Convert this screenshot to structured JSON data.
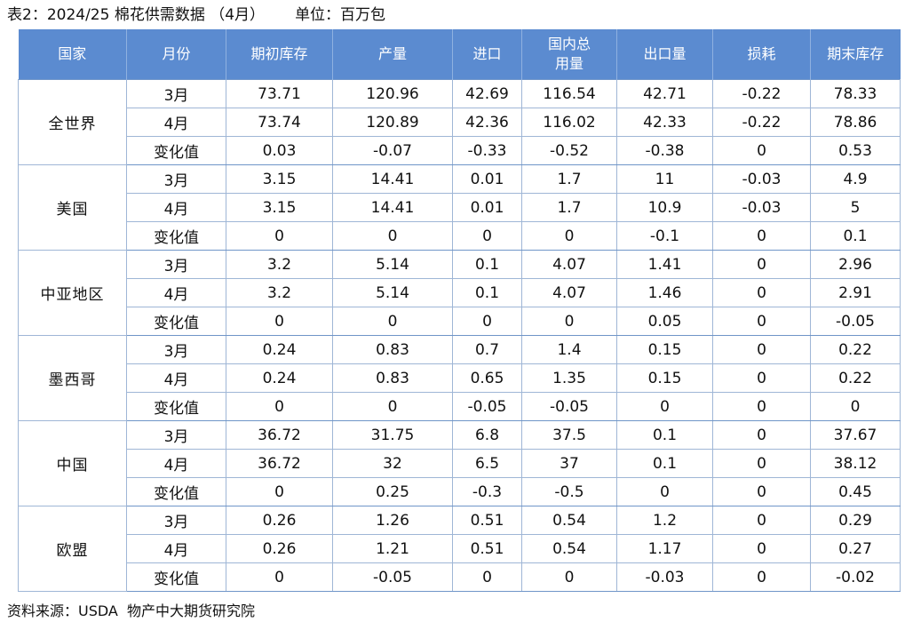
{
  "title": "表2：2024/25 棉花供需数据 （4月）",
  "unit": "单位：百万包",
  "headers": [
    "国家",
    "月份",
    "期初库存",
    "产量",
    "进口",
    "国内总用量",
    "出口量",
    "损耗",
    "期末库存"
  ],
  "groups": [
    {
      "country": "全世界",
      "rows": [
        {
          "month": "3月",
          "values": [
            "73.71",
            "120.96",
            "42.69",
            "116.54",
            "42.71",
            "-0.22",
            "78.33"
          ]
        },
        {
          "month": "4月",
          "values": [
            "73.74",
            "120.89",
            "42.36",
            "116.02",
            "42.33",
            "-0.22",
            "78.86"
          ]
        },
        {
          "month": "变化值",
          "values": [
            "0.03",
            "-0.07",
            "-0.33",
            "-0.52",
            "-0.38",
            "0",
            "0.53"
          ]
        }
      ]
    },
    {
      "country": "美国",
      "rows": [
        {
          "month": "3月",
          "values": [
            "3.15",
            "14.41",
            "0.01",
            "1.7",
            "11",
            "-0.03",
            "4.9"
          ]
        },
        {
          "month": "4月",
          "values": [
            "3.15",
            "14.41",
            "0.01",
            "1.7",
            "10.9",
            "-0.03",
            "5"
          ]
        },
        {
          "month": "变化值",
          "values": [
            "0",
            "0",
            "0",
            "0",
            "-0.1",
            "0",
            "0.1"
          ]
        }
      ]
    },
    {
      "country": "中亚地区",
      "rows": [
        {
          "month": "3月",
          "values": [
            "3.2",
            "5.14",
            "0.1",
            "4.07",
            "1.41",
            "0",
            "2.96"
          ]
        },
        {
          "month": "4月",
          "values": [
            "3.2",
            "5.14",
            "0.1",
            "4.07",
            "1.46",
            "0",
            "2.91"
          ]
        },
        {
          "month": "变化值",
          "values": [
            "0",
            "0",
            "0",
            "0",
            "0.05",
            "0",
            "-0.05"
          ]
        }
      ]
    },
    {
      "country": "墨西哥",
      "rows": [
        {
          "month": "3月",
          "values": [
            "0.24",
            "0.83",
            "0.7",
            "1.4",
            "0.15",
            "0",
            "0.22"
          ]
        },
        {
          "month": "4月",
          "values": [
            "0.24",
            "0.83",
            "0.65",
            "1.35",
            "0.15",
            "0",
            "0.22"
          ]
        },
        {
          "month": "变化值",
          "values": [
            "0",
            "0",
            "-0.05",
            "-0.05",
            "0",
            "0",
            "0"
          ]
        }
      ]
    },
    {
      "country": "中国",
      "rows": [
        {
          "month": "3月",
          "values": [
            "36.72",
            "31.75",
            "6.8",
            "37.5",
            "0.1",
            "0",
            "37.67"
          ]
        },
        {
          "month": "4月",
          "values": [
            "36.72",
            "32",
            "6.5",
            "37",
            "0.1",
            "0",
            "38.12"
          ]
        },
        {
          "month": "变化值",
          "values": [
            "0",
            "0.25",
            "-0.3",
            "-0.5",
            "0",
            "0",
            "0.45"
          ]
        }
      ]
    },
    {
      "country": "欧盟",
      "rows": [
        {
          "month": "3月",
          "values": [
            "0.26",
            "1.26",
            "0.51",
            "0.54",
            "1.2",
            "0",
            "0.29"
          ]
        },
        {
          "month": "4月",
          "values": [
            "0.26",
            "1.21",
            "0.51",
            "0.54",
            "1.17",
            "0",
            "0.27"
          ]
        },
        {
          "month": "变化值",
          "values": [
            "0",
            "-0.05",
            "0",
            "0",
            "-0.03",
            "0",
            "-0.02"
          ]
        }
      ]
    }
  ],
  "source": "资料来源：USDA  物产中大期货研究院",
  "colors": {
    "header_bg": "#5b8bd0",
    "header_text": "#ffffff",
    "grid": "#9fb6d6"
  }
}
